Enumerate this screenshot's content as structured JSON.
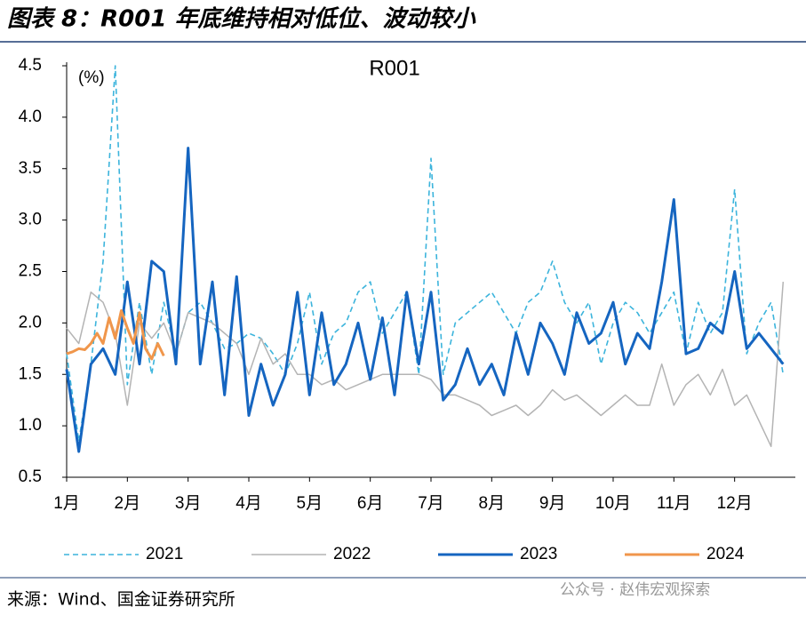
{
  "title": "图表 8：R001 年底维持相对低位、波动较小",
  "source": "来源：Wind、国金证券研究所",
  "watermark": "公众号 · 赵伟宏观探索",
  "chart_data": {
    "type": "line",
    "title": "R001",
    "y_label": "(%)",
    "xlim": [
      1,
      13
    ],
    "xticks": [
      {
        "value": 1,
        "label": "1月"
      },
      {
        "value": 2,
        "label": "2月"
      },
      {
        "value": 3,
        "label": "3月"
      },
      {
        "value": 4,
        "label": "4月"
      },
      {
        "value": 5,
        "label": "5月"
      },
      {
        "value": 6,
        "label": "6月"
      },
      {
        "value": 7,
        "label": "7月"
      },
      {
        "value": 8,
        "label": "8月"
      },
      {
        "value": 9,
        "label": "9月"
      },
      {
        "value": 10,
        "label": "10月"
      },
      {
        "value": 11,
        "label": "11月"
      },
      {
        "value": 12,
        "label": "12月"
      }
    ],
    "ylim": [
      0.5,
      4.5
    ],
    "yticks": [
      0.5,
      {
        "value": 1,
        "label": "1.0"
      },
      1.5,
      {
        "value": 2,
        "label": "2.0"
      },
      2.5,
      {
        "value": 3,
        "label": "3.0"
      },
      3.5,
      {
        "value": 4,
        "label": "4.0"
      },
      4.5
    ],
    "grid": false,
    "legend": "bottom",
    "x": [
      1,
      1.2,
      1.4,
      1.6,
      1.8,
      2,
      2.2,
      2.4,
      2.6,
      2.8,
      3,
      3.2,
      3.4,
      3.6,
      3.8,
      4,
      4.2,
      4.4,
      4.6,
      4.8,
      5,
      5.2,
      5.4,
      5.6,
      5.8,
      6,
      6.2,
      6.4,
      6.6,
      6.8,
      7,
      7.2,
      7.4,
      7.6,
      7.8,
      8,
      8.2,
      8.4,
      8.6,
      8.8,
      9,
      9.2,
      9.4,
      9.6,
      9.8,
      10,
      10.2,
      10.4,
      10.6,
      10.8,
      11,
      11.2,
      11.4,
      11.6,
      11.8,
      12,
      12.2,
      12.4,
      12.6,
      12.8
    ],
    "series": [
      {
        "name": "2021",
        "color": "#3cb4dc",
        "dash": "6,4",
        "width": 1.6,
        "values": [
          1.7,
          0.85,
          1.6,
          2.6,
          4.5,
          1.4,
          2.2,
          1.5,
          2.2,
          1.7,
          2.1,
          2.2,
          2.0,
          1.75,
          1.8,
          1.9,
          1.85,
          1.7,
          1.5,
          1.8,
          2.3,
          1.6,
          1.9,
          2.0,
          2.3,
          2.4,
          1.9,
          2.1,
          2.3,
          1.5,
          3.6,
          1.5,
          2.0,
          2.1,
          2.2,
          2.3,
          2.1,
          1.9,
          2.2,
          2.3,
          2.6,
          2.2,
          2.0,
          2.2,
          1.6,
          2.0,
          2.2,
          2.1,
          1.9,
          2.1,
          2.3,
          1.7,
          2.2,
          1.9,
          2.1,
          3.3,
          1.7,
          2.0,
          2.2,
          1.5
        ]
      },
      {
        "name": "2022",
        "color": "#b4b4b4",
        "width": 1.5,
        "values": [
          1.95,
          1.8,
          2.3,
          2.2,
          1.9,
          1.2,
          2.0,
          1.85,
          2.0,
          1.7,
          2.1,
          2.05,
          2.0,
          1.9,
          1.8,
          1.5,
          1.85,
          1.6,
          1.7,
          1.5,
          1.5,
          1.4,
          1.45,
          1.35,
          1.4,
          1.45,
          1.5,
          1.5,
          1.5,
          1.5,
          1.45,
          1.3,
          1.3,
          1.25,
          1.2,
          1.1,
          1.15,
          1.2,
          1.1,
          1.2,
          1.35,
          1.25,
          1.3,
          1.2,
          1.1,
          1.2,
          1.3,
          1.2,
          1.2,
          1.6,
          1.2,
          1.4,
          1.5,
          1.3,
          1.55,
          1.2,
          1.3,
          1.05,
          0.8,
          2.4
        ]
      },
      {
        "name": "2023",
        "color": "#1565c0",
        "width": 3,
        "values": [
          1.55,
          0.75,
          1.6,
          1.75,
          1.5,
          2.4,
          1.6,
          2.6,
          2.5,
          1.6,
          3.7,
          1.6,
          2.4,
          1.3,
          2.45,
          1.1,
          1.6,
          1.2,
          1.5,
          2.3,
          1.3,
          2.1,
          1.4,
          1.6,
          2.0,
          1.45,
          2.05,
          1.3,
          2.3,
          1.6,
          2.3,
          1.25,
          1.4,
          1.75,
          1.4,
          1.6,
          1.3,
          1.9,
          1.5,
          2.0,
          1.8,
          1.5,
          2.1,
          1.8,
          1.9,
          2.2,
          1.6,
          1.9,
          1.75,
          2.4,
          3.2,
          1.7,
          1.75,
          2.0,
          1.9,
          2.5,
          1.75,
          1.9,
          1.75,
          1.6
        ]
      },
      {
        "name": "2024",
        "color": "#f0964b",
        "width": 3,
        "x": [
          1,
          1.1,
          1.2,
          1.3,
          1.4,
          1.5,
          1.6,
          1.7,
          1.8,
          1.9,
          2,
          2.1,
          2.2,
          2.3,
          2.4,
          2.5,
          2.6
        ],
        "values": [
          1.7,
          1.72,
          1.75,
          1.74,
          1.8,
          1.9,
          1.8,
          2.05,
          1.85,
          2.12,
          1.95,
          1.8,
          2.1,
          1.75,
          1.65,
          1.8,
          1.68
        ]
      }
    ]
  }
}
